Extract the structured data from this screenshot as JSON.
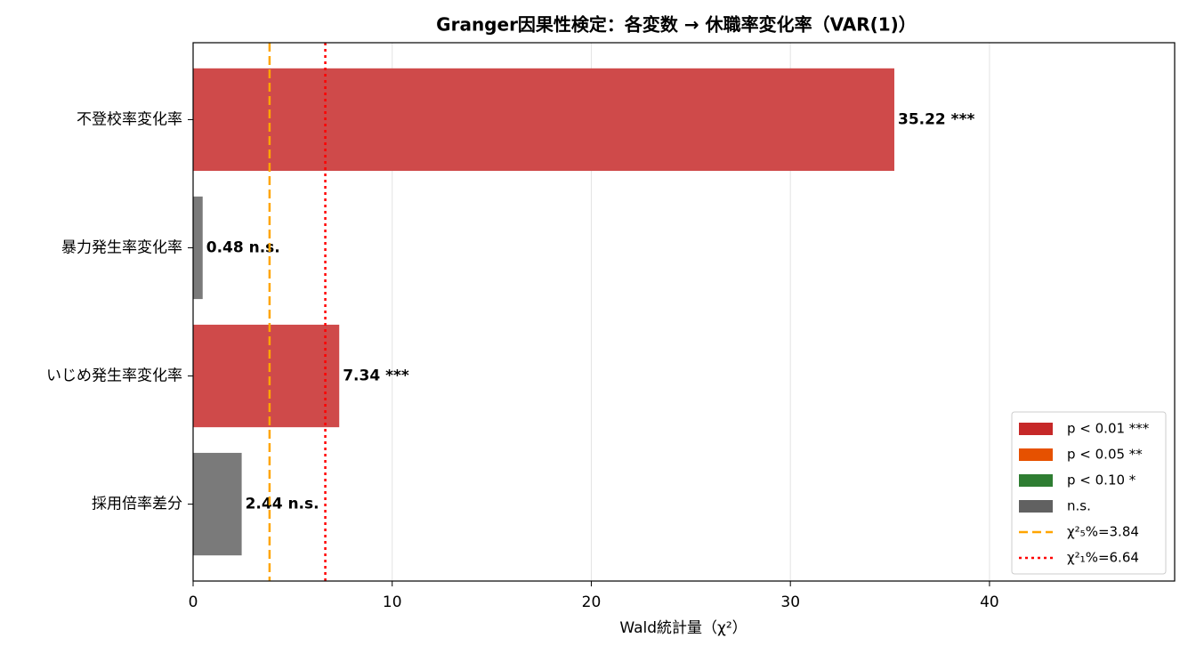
{
  "chart_data": {
    "type": "barh",
    "title": "Granger因果性検定：各変数 → 休職率変化率（VAR(1)）",
    "xlabel": "Wald統計量（χ²）",
    "categories": [
      "不登校率変化率",
      "暴力発生率変化率",
      "いじめ発生率変化率",
      "採用倍率差分"
    ],
    "values": [
      35.22,
      0.48,
      7.34,
      2.44
    ],
    "value_labels": [
      "35.22 ***",
      "0.48 n.s.",
      "7.34 ***",
      "2.44 n.s."
    ],
    "colors": [
      "#cf4a4a",
      "#7a7a7a",
      "#cf4a4a",
      "#7a7a7a"
    ],
    "xlim": [
      0,
      49.3
    ],
    "xticks": [
      0,
      10,
      20,
      30,
      40
    ],
    "grid": true,
    "reference_lines": [
      {
        "value": 3.84,
        "label": "χ²₅%=3.84",
        "color": "#ffa500",
        "style": "dashed"
      },
      {
        "value": 6.64,
        "label": "χ²₁%=6.64",
        "color": "#ff0000",
        "style": "dotted"
      }
    ],
    "legend_position": "lower right",
    "legend_patches": [
      {
        "label": "p < 0.01 ***",
        "color": "#c62828"
      },
      {
        "label": "p < 0.05 **",
        "color": "#e65100"
      },
      {
        "label": "p < 0.10 *",
        "color": "#2e7d32"
      },
      {
        "label": "n.s.",
        "color": "#616161"
      }
    ]
  }
}
